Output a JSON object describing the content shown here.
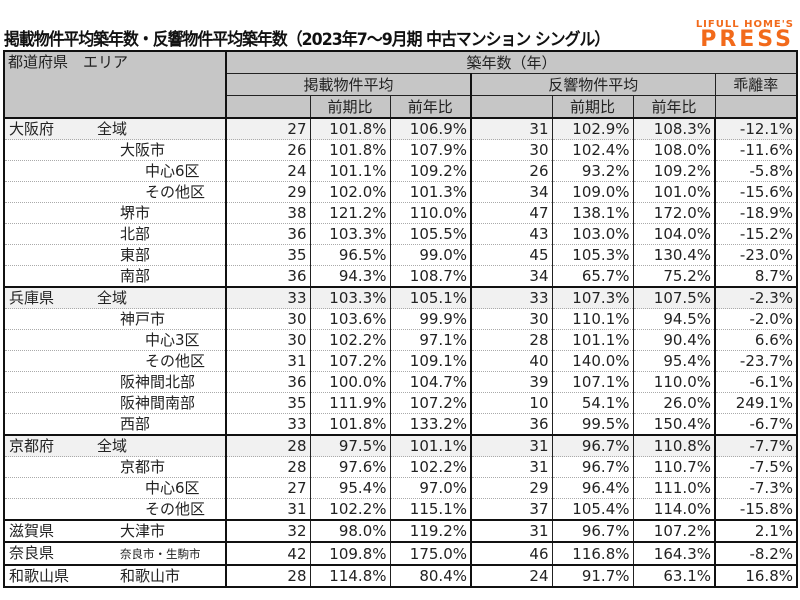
{
  "title": "掲載物件平均築年数・反響物件平均築年数（2023年7～9月期 中古マンション シングル）",
  "logo": {
    "line1": "LIFULL HOME'S",
    "line2": "PRESS",
    "color": "#f26a1b"
  },
  "header": {
    "area": "都道府県　エリア",
    "age": "築年数（年）",
    "listed": "掲載物件平均",
    "response": "反響物件平均",
    "gap": "乖離率",
    "qoq": "前期比",
    "yoy": "前年比"
  },
  "rows": [
    {
      "pref": "大阪府",
      "area": "全域",
      "lvl": 0,
      "v": [
        "27",
        "101.8%",
        "106.9%",
        "31",
        "102.9%",
        "108.3%",
        "-12.1%"
      ]
    },
    {
      "pref": "",
      "area": "大阪市",
      "lvl": 1,
      "v": [
        "26",
        "101.8%",
        "107.9%",
        "30",
        "102.4%",
        "108.0%",
        "-11.6%"
      ]
    },
    {
      "pref": "",
      "area": "中心6区",
      "lvl": 2,
      "v": [
        "24",
        "101.1%",
        "109.2%",
        "26",
        "93.2%",
        "109.2%",
        "-5.8%"
      ]
    },
    {
      "pref": "",
      "area": "その他区",
      "lvl": 2,
      "v": [
        "29",
        "102.0%",
        "101.3%",
        "34",
        "109.0%",
        "101.0%",
        "-15.6%"
      ]
    },
    {
      "pref": "",
      "area": "堺市",
      "lvl": 1,
      "v": [
        "38",
        "121.2%",
        "110.0%",
        "47",
        "138.1%",
        "172.0%",
        "-18.9%"
      ]
    },
    {
      "pref": "",
      "area": "北部",
      "lvl": 1,
      "v": [
        "36",
        "103.3%",
        "105.5%",
        "43",
        "103.0%",
        "104.0%",
        "-15.2%"
      ]
    },
    {
      "pref": "",
      "area": "東部",
      "lvl": 1,
      "v": [
        "35",
        "96.5%",
        "99.0%",
        "45",
        "105.3%",
        "130.4%",
        "-23.0%"
      ]
    },
    {
      "pref": "",
      "area": "南部",
      "lvl": 1,
      "v": [
        "36",
        "94.3%",
        "108.7%",
        "34",
        "65.7%",
        "75.2%",
        "8.7%"
      ]
    },
    {
      "pref": "兵庫県",
      "area": "全域",
      "lvl": 0,
      "v": [
        "33",
        "103.3%",
        "105.1%",
        "33",
        "107.3%",
        "107.5%",
        "-2.3%"
      ]
    },
    {
      "pref": "",
      "area": "神戸市",
      "lvl": 1,
      "v": [
        "30",
        "103.6%",
        "99.9%",
        "30",
        "110.1%",
        "94.5%",
        "-2.0%"
      ]
    },
    {
      "pref": "",
      "area": "中心3区",
      "lvl": 2,
      "v": [
        "30",
        "102.2%",
        "97.1%",
        "28",
        "101.1%",
        "90.4%",
        "6.6%"
      ]
    },
    {
      "pref": "",
      "area": "その他区",
      "lvl": 2,
      "v": [
        "31",
        "107.2%",
        "109.1%",
        "40",
        "140.0%",
        "95.4%",
        "-23.7%"
      ]
    },
    {
      "pref": "",
      "area": "阪神間北部",
      "lvl": 1,
      "v": [
        "36",
        "100.0%",
        "104.7%",
        "39",
        "107.1%",
        "110.0%",
        "-6.1%"
      ]
    },
    {
      "pref": "",
      "area": "阪神間南部",
      "lvl": 1,
      "v": [
        "35",
        "111.9%",
        "107.2%",
        "10",
        "54.1%",
        "26.0%",
        "249.1%"
      ]
    },
    {
      "pref": "",
      "area": "西部",
      "lvl": 1,
      "v": [
        "33",
        "101.8%",
        "133.2%",
        "36",
        "99.5%",
        "150.4%",
        "-6.7%"
      ]
    },
    {
      "pref": "京都府",
      "area": "全域",
      "lvl": 0,
      "v": [
        "28",
        "97.5%",
        "101.1%",
        "31",
        "96.7%",
        "110.8%",
        "-7.7%"
      ]
    },
    {
      "pref": "",
      "area": "京都市",
      "lvl": 1,
      "v": [
        "28",
        "97.6%",
        "102.2%",
        "31",
        "96.7%",
        "110.7%",
        "-7.5%"
      ]
    },
    {
      "pref": "",
      "area": "中心6区",
      "lvl": 2,
      "v": [
        "27",
        "95.4%",
        "97.0%",
        "29",
        "96.4%",
        "111.0%",
        "-7.3%"
      ]
    },
    {
      "pref": "",
      "area": "その他区",
      "lvl": 2,
      "v": [
        "31",
        "102.2%",
        "115.1%",
        "37",
        "105.4%",
        "114.0%",
        "-15.8%"
      ]
    },
    {
      "pref": "滋賀県",
      "area": "大津市",
      "lvl": 1,
      "v": [
        "32",
        "98.0%",
        "119.2%",
        "31",
        "96.7%",
        "107.2%",
        "2.1%"
      ]
    },
    {
      "pref": "奈良県",
      "area": "奈良市・生駒市",
      "lvl": 1,
      "small": true,
      "v": [
        "42",
        "109.8%",
        "175.0%",
        "46",
        "116.8%",
        "164.3%",
        "-8.2%"
      ]
    },
    {
      "pref": "和歌山県",
      "area": "和歌山市",
      "lvl": 1,
      "v": [
        "28",
        "114.8%",
        "80.4%",
        "24",
        "91.7%",
        "63.1%",
        "16.8%"
      ]
    }
  ]
}
